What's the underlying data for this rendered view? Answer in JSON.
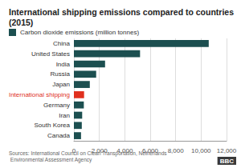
{
  "chart_data": {
    "type": "bar",
    "orientation": "horizontal",
    "title": "International shipping emissions compared to countries (2015)",
    "categories": [
      "China",
      "United States",
      "India",
      "Russia",
      "Japan",
      "International shipping",
      "Germany",
      "Iran",
      "South Korea",
      "Canada"
    ],
    "series": [
      {
        "name": "Carbon dioxide emissions (million tonnes)",
        "color": "#1c4f50",
        "values": [
          10600,
          5200,
          2450,
          1750,
          1250,
          800,
          780,
          650,
          620,
          560
        ],
        "colors": [
          "#1c4f50",
          "#1c4f50",
          "#1c4f50",
          "#1c4f50",
          "#1c4f50",
          "#e0301e",
          "#1c4f50",
          "#1c4f50",
          "#1c4f50",
          "#1c4f50"
        ]
      }
    ],
    "xlim": [
      0,
      12000
    ],
    "xticks": [
      0,
      {
        "value": 2000,
        "label": "2,000"
      },
      {
        "value": 4000,
        "label": "4,000"
      },
      {
        "value": 6000,
        "label": "6,000"
      },
      {
        "value": 8000,
        "label": "8,000"
      },
      {
        "value": 10000,
        "label": "10,000"
      },
      {
        "value": 12000,
        "label": "12,000"
      }
    ],
    "grid": true,
    "legend": "top-left",
    "source": "Sources: International Council on Clean Transportation, Netherlands Environmental Assessment Agency",
    "logo": "BBC"
  }
}
